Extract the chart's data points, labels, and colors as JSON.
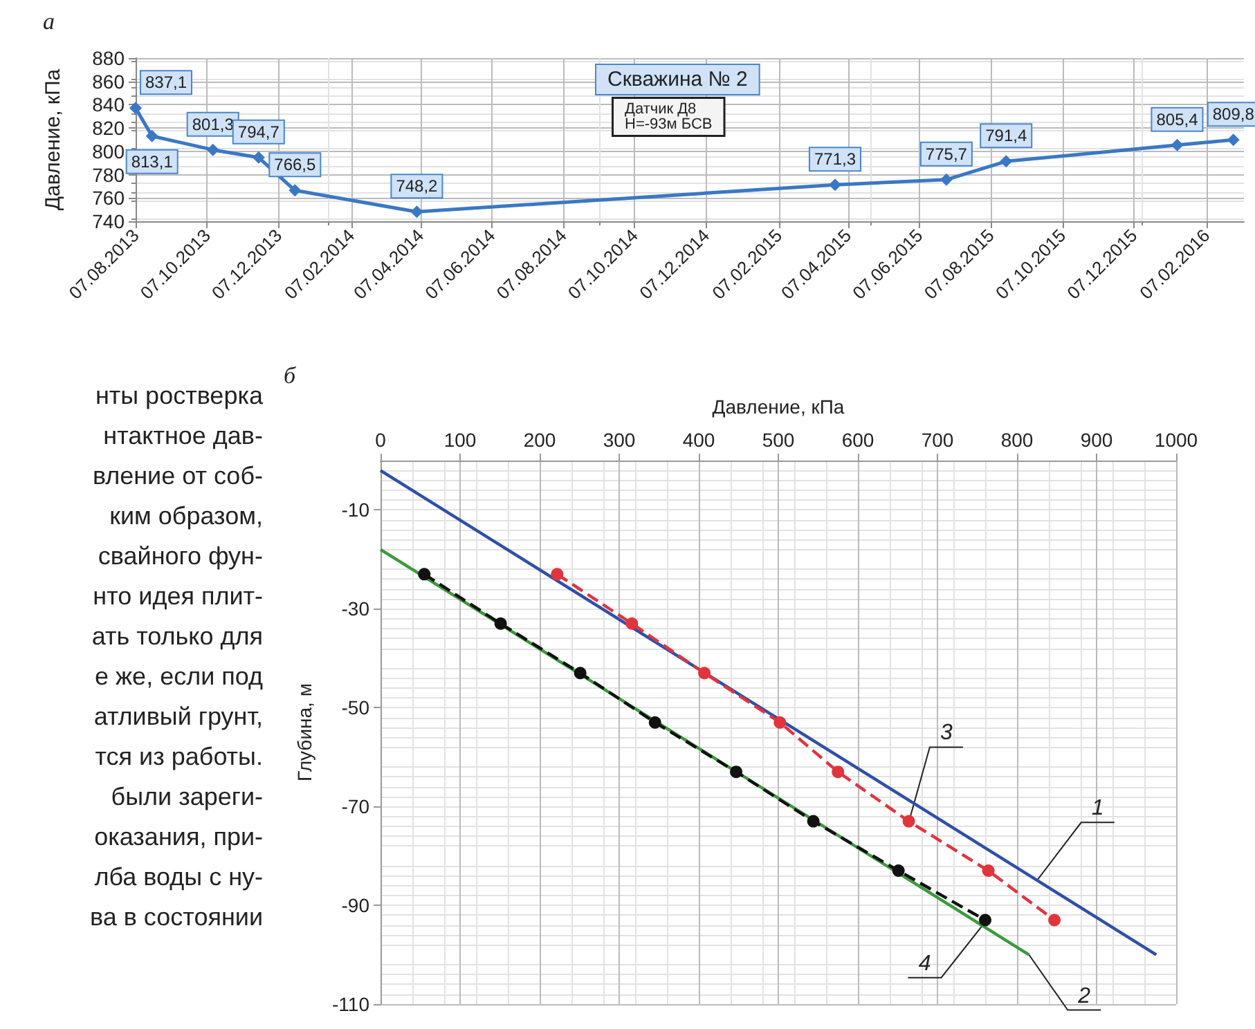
{
  "chart_data": [
    {
      "type": "line",
      "title": "а",
      "ylabel": "Давление, кПа",
      "color": "#3b78c4",
      "marker": "diamond",
      "grid": true,
      "x": [
        "2013-08-07",
        "2013-08-21",
        "2013-10-12",
        "2013-11-20",
        "2013-12-21",
        "2014-04-04",
        "2015-03-27",
        "2015-06-30",
        "2015-08-20",
        "2016-01-13",
        "2016-03-01"
      ],
      "values": [
        837.1,
        813.1,
        801.3,
        794.7,
        766.5,
        748.2,
        771.3,
        775.7,
        791.4,
        805.4,
        809.8
      ],
      "value_labels": [
        "837,1",
        "813,1",
        "801,3",
        "794,7",
        "766,5",
        "748,2",
        "771,3",
        "775,7",
        "791,4",
        "805,4",
        "809,8"
      ],
      "xlim": [
        "2013-08-07",
        "2016-03-10"
      ],
      "ylim": [
        740,
        880
      ],
      "yticks": [
        740,
        760,
        780,
        800,
        820,
        840,
        860,
        880
      ],
      "xticks": [
        {
          "value": "2013-08-07",
          "label": "07.08.2013"
        },
        {
          "value": "2013-10-07",
          "label": "07.10.2013"
        },
        {
          "value": "2013-12-07",
          "label": "07.12.2013"
        },
        {
          "value": "2014-02-07",
          "label": "07.02.2014"
        },
        {
          "value": "2014-04-07",
          "label": "07.04.2014"
        },
        {
          "value": "2014-06-07",
          "label": "07.06.2014"
        },
        {
          "value": "2014-08-07",
          "label": "07.08.2014"
        },
        {
          "value": "2014-10-07",
          "label": "07.10.2014"
        },
        {
          "value": "2014-12-07",
          "label": "07.12.2014"
        },
        {
          "value": "2015-02-07",
          "label": "07.02.2015"
        },
        {
          "value": "2015-04-07",
          "label": "07.04.2015"
        },
        {
          "value": "2015-06-07",
          "label": "07.06.2015"
        },
        {
          "value": "2015-08-07",
          "label": "07.08.2015"
        },
        {
          "value": "2015-10-07",
          "label": "07.10.2015"
        },
        {
          "value": "2015-12-07",
          "label": "07.12.2015"
        },
        {
          "value": "2016-02-07",
          "label": "07.02.2016"
        }
      ],
      "annotations": [
        "Скважина № 2",
        "Датчик Д8\nH=-93м БСВ"
      ]
    },
    {
      "type": "line",
      "title": "б",
      "xlabel": "Давление, кПа",
      "ylabel": "Глубина, м",
      "grid": true,
      "xlim": [
        0,
        1000
      ],
      "xticks": [
        0,
        100,
        200,
        300,
        400,
        500,
        600,
        700,
        800,
        900,
        1000
      ],
      "ylim": [
        -110,
        0
      ],
      "yticks": [
        -10,
        -30,
        -50,
        -70,
        -90,
        -110
      ],
      "series": [
        {
          "color": "#2f4fa8",
          "marker": "none",
          "line_style": "solid",
          "x": [
            0,
            975
          ],
          "values": [
            -2,
            -100
          ]
        },
        {
          "color": "#3c9a3c",
          "marker": "none",
          "line_style": "solid",
          "x": [
            0,
            815
          ],
          "values": [
            -18,
            -100
          ]
        },
        {
          "color": "#e0353d",
          "marker": "circle",
          "line_style": "dashed",
          "x": [
            222,
            316,
            407,
            502,
            575,
            664,
            764,
            847
          ],
          "values": [
            -23,
            -33,
            -43,
            -53,
            -63,
            -73,
            -83,
            -93
          ]
        },
        {
          "color": "#111111",
          "marker": "circle",
          "line_style": "dashed",
          "x": [
            55,
            151,
            251,
            345,
            447,
            544,
            651,
            760
          ],
          "values": [
            -23,
            -33,
            -43,
            -53,
            -63,
            -73,
            -83,
            -93
          ]
        }
      ],
      "annotations": [
        {
          "text": "1",
          "x": 825,
          "y": -85
        },
        {
          "text": "2",
          "x": 815,
          "y": -100
        },
        {
          "text": "3",
          "x": 666,
          "y": -72
        },
        {
          "text": "4",
          "x": 757,
          "y": -94
        }
      ]
    },
    {
      "type": "other",
      "annotations": [
        "нты ростверка",
        "нтактное дав-",
        "вление от соб-",
        "ким образом,",
        "свайного фун-",
        "нто идея плит-",
        "ать только для",
        "е же, если под",
        "атливый грунт,",
        "тся из работы.",
        "были зареги-",
        "оказания, при-",
        "лба воды с ну-",
        "ва в состоянии"
      ]
    }
  ]
}
